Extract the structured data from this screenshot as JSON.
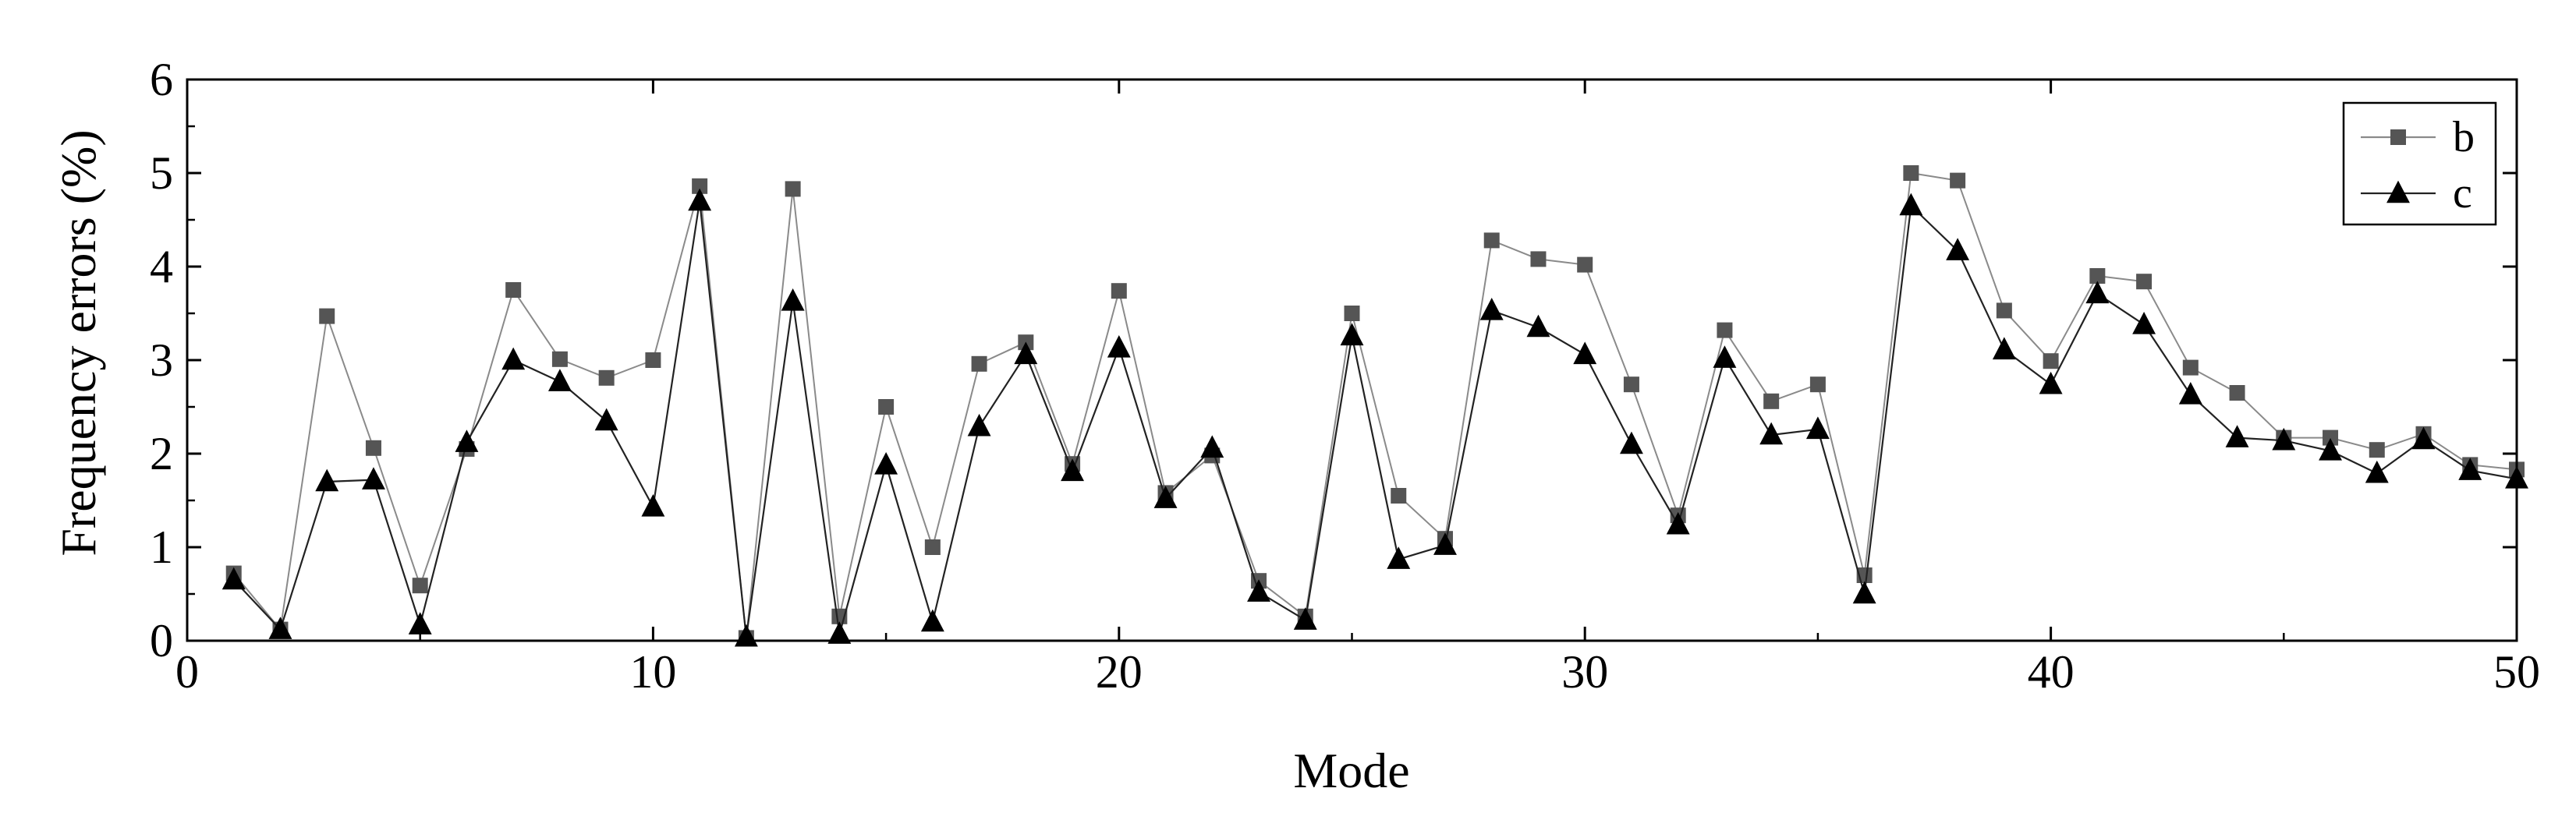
{
  "chart_data": {
    "type": "line",
    "title": "",
    "xlabel": "Mode",
    "ylabel": "Frequency errors (%)",
    "xlim": [
      0,
      50
    ],
    "ylim": [
      0,
      6
    ],
    "xticks": [
      0,
      10,
      20,
      30,
      40,
      50
    ],
    "yticks": [
      0,
      1,
      2,
      3,
      4,
      5,
      6
    ],
    "grid": false,
    "legend_position": "top-right",
    "series": [
      {
        "name": "b",
        "marker": "square",
        "line_color": "#8a8a8a",
        "marker_color": "#555555",
        "x": [
          1,
          2,
          3,
          4,
          5,
          6,
          7,
          8,
          9,
          10,
          11,
          12,
          13,
          14,
          15,
          16,
          17,
          18,
          19,
          20,
          21,
          22,
          23,
          24,
          25,
          26,
          27,
          28,
          29,
          30,
          31,
          32,
          33,
          34,
          35,
          36,
          37,
          38,
          39,
          40,
          41,
          42,
          43,
          44,
          45,
          46,
          47,
          48,
          49,
          50
        ],
        "values": [
          0.72,
          0.12,
          3.47,
          2.06,
          0.59,
          2.05,
          3.75,
          3.01,
          2.81,
          3.0,
          4.86,
          0.03,
          4.83,
          0.26,
          2.5,
          1.0,
          2.96,
          3.19,
          1.89,
          3.74,
          1.58,
          1.98,
          0.64,
          0.26,
          3.5,
          1.55,
          1.09,
          4.28,
          4.08,
          4.02,
          2.74,
          1.34,
          3.32,
          2.56,
          2.74,
          0.7,
          5.0,
          4.92,
          3.53,
          2.99,
          3.9,
          3.84,
          2.92,
          2.65,
          2.17,
          2.17,
          2.04,
          2.21,
          1.88,
          1.83
        ]
      },
      {
        "name": "c",
        "marker": "triangle",
        "line_color": "#222222",
        "marker_color": "#000000",
        "x": [
          1,
          2,
          3,
          4,
          5,
          6,
          7,
          8,
          9,
          10,
          11,
          12,
          13,
          14,
          15,
          16,
          17,
          18,
          19,
          20,
          21,
          22,
          23,
          24,
          25,
          26,
          27,
          28,
          29,
          30,
          31,
          32,
          33,
          34,
          35,
          36,
          37,
          38,
          39,
          40,
          41,
          42,
          43,
          44,
          45,
          46,
          47,
          48,
          49,
          50
        ],
        "values": [
          0.65,
          0.12,
          1.7,
          1.72,
          0.17,
          2.12,
          3.0,
          2.77,
          2.35,
          1.43,
          4.7,
          0.04,
          3.63,
          0.07,
          1.88,
          0.2,
          2.29,
          3.06,
          1.81,
          3.13,
          1.52,
          2.06,
          0.52,
          0.22,
          3.26,
          0.87,
          1.02,
          3.53,
          3.35,
          3.06,
          2.1,
          1.24,
          3.02,
          2.2,
          2.26,
          0.5,
          4.65,
          4.17,
          3.11,
          2.74,
          3.71,
          3.38,
          2.63,
          2.17,
          2.14,
          2.03,
          1.79,
          2.15,
          1.82,
          1.73
        ]
      }
    ]
  }
}
